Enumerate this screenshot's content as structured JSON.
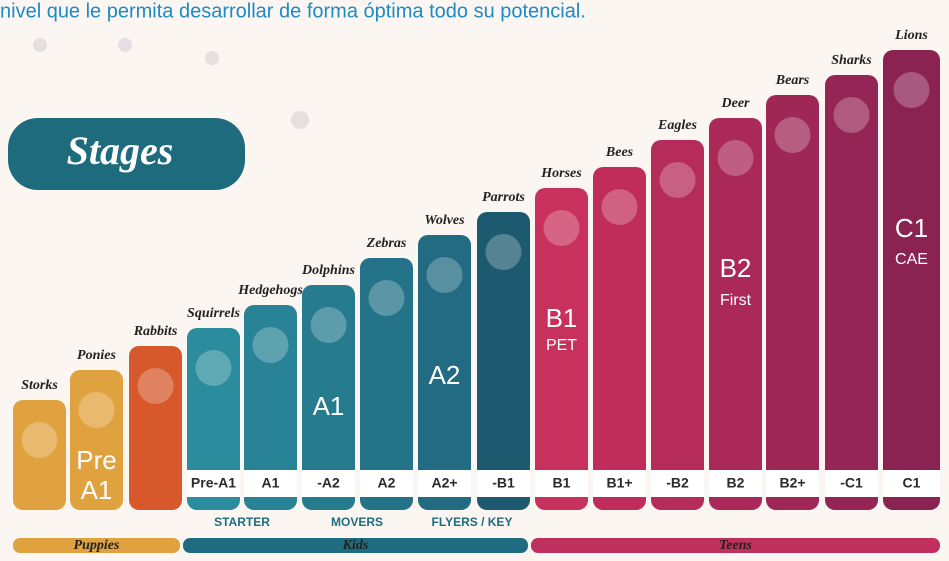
{
  "intro": "nivel que le permita desarrollar de forma óptima todo su potencial.",
  "heading": "Stages",
  "columns": [
    {
      "animal": "Storks",
      "color": "#e0a23e"
    },
    {
      "animal": "Ponies",
      "color": "#e0a23e",
      "big": "Pre",
      "big2": "A1"
    },
    {
      "animal": "Rabbits",
      "color": "#d6582b"
    },
    {
      "animal": "Squirrels",
      "color": "#2a8c9c",
      "level": "Pre-A1"
    },
    {
      "animal": "Hedgehogs",
      "color": "#288396",
      "level": "A1"
    },
    {
      "animal": "Dolphins",
      "color": "#267b8f",
      "level": "-A2",
      "big": "A1"
    },
    {
      "animal": "Zebras",
      "color": "#247389",
      "level": "A2"
    },
    {
      "animal": "Wolves",
      "color": "#226b82",
      "level": "A2+",
      "big": "A2"
    },
    {
      "animal": "Parrots",
      "color": "#1d5a70",
      "level": "-B1"
    },
    {
      "animal": "Horses",
      "color": "#c8305e",
      "level": "B1",
      "big": "B1",
      "small": "PET"
    },
    {
      "animal": "Bees",
      "color": "#c02d5c",
      "level": "B1+"
    },
    {
      "animal": "Eagles",
      "color": "#b52b5a",
      "level": "-B2"
    },
    {
      "animal": "Deer",
      "color": "#aa2958",
      "level": "B2",
      "big": "B2",
      "small": "First"
    },
    {
      "animal": "Bears",
      "color": "#9f2756",
      "level": "B2+"
    },
    {
      "animal": "Sharks",
      "color": "#942554",
      "level": "-C1"
    },
    {
      "animal": "Lions",
      "color": "#8a2352",
      "level": "C1",
      "big": "C1",
      "small": "CAE"
    }
  ],
  "groups": [
    "STARTER",
    "MOVERS",
    "FLYERS / KEY"
  ],
  "bands": [
    {
      "name": "Puppies",
      "color": "#e0a23e"
    },
    {
      "name": "Kids",
      "color": "#1f6c80"
    },
    {
      "name": "Teens",
      "color": "#c0305e"
    }
  ]
}
